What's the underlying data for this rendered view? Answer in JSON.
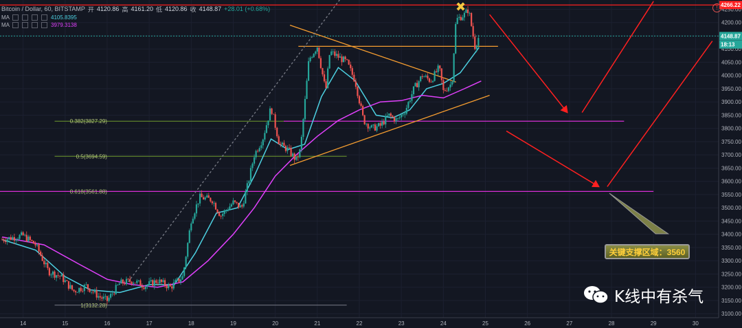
{
  "header": {
    "symbol": "Bitcoin / Dollar, 60, BITSTAMP",
    "open_label": "开",
    "open": "4120.86",
    "high_label": "高",
    "high": "4161.20",
    "low_label": "低",
    "low": "4120.86",
    "close_label": "收",
    "close": "4148.87",
    "change": "+28.01 (+0.68%)"
  },
  "indicators": [
    {
      "name": "MA",
      "value": "4105.8395",
      "color": "#4dd0e1"
    },
    {
      "name": "MA",
      "value": "3979.3138",
      "color": "#e040fb"
    }
  ],
  "price_badges": {
    "high_line": "4266.22",
    "last": "4148.87",
    "countdown": "18:13"
  },
  "fib_labels": [
    {
      "text": "0.382(3827.29)",
      "price": 3827.29
    },
    {
      "text": "0.5(3694.59)",
      "price": 3694.59
    },
    {
      "text": "0.618(3561.88)",
      "price": 3561.88
    },
    {
      "text": "1(3132.28)",
      "price": 3132.28
    }
  ],
  "callout": "关键支撑区域：3560",
  "watermark": "K线中有杀气",
  "colors": {
    "bg": "#131722",
    "up": "#26a69a",
    "down": "#ef5350",
    "ma_fast": "#4dd0e1",
    "ma_slow": "#e040fb",
    "trend": "#f59d30",
    "red": "#ff2020"
  },
  "chart_data": {
    "type": "candlestick",
    "title": "Bitcoin / Dollar, 60, BITSTAMP",
    "x_ticks": [
      "14",
      "15",
      "16",
      "17",
      "18",
      "19",
      "20",
      "21",
      "22",
      "23",
      "24",
      "25",
      "26",
      "27",
      "28",
      "29",
      "30"
    ],
    "y_ticks": [
      3100,
      3150,
      3200,
      3250,
      3300,
      3350,
      3400,
      3450,
      3500,
      3550,
      3600,
      3650,
      3700,
      3750,
      3800,
      3850,
      3900,
      3950,
      4000,
      4050,
      4100,
      4150,
      4200,
      4250
    ],
    "ylim": [
      3085,
      4285
    ],
    "xlim": [
      13.45,
      30.55
    ],
    "price_path": [
      [
        13.5,
        3380
      ],
      [
        14.0,
        3395
      ],
      [
        14.3,
        3360
      ],
      [
        14.6,
        3260
      ],
      [
        14.9,
        3240
      ],
      [
        15.2,
        3185
      ],
      [
        15.5,
        3205
      ],
      [
        15.8,
        3165
      ],
      [
        16.0,
        3150
      ],
      [
        16.3,
        3215
      ],
      [
        16.6,
        3225
      ],
      [
        16.9,
        3205
      ],
      [
        17.2,
        3225
      ],
      [
        17.5,
        3200
      ],
      [
        17.8,
        3240
      ],
      [
        18.0,
        3455
      ],
      [
        18.2,
        3540
      ],
      [
        18.5,
        3530
      ],
      [
        18.7,
        3470
      ],
      [
        19.0,
        3520
      ],
      [
        19.2,
        3500
      ],
      [
        19.35,
        3590
      ],
      [
        19.5,
        3700
      ],
      [
        19.7,
        3760
      ],
      [
        19.9,
        3880
      ],
      [
        20.1,
        3740
      ],
      [
        20.3,
        3720
      ],
      [
        20.5,
        3680
      ],
      [
        20.6,
        3720
      ],
      [
        20.8,
        4060
      ],
      [
        21.0,
        4110
      ],
      [
        21.2,
        3940
      ],
      [
        21.3,
        4090
      ],
      [
        21.5,
        4070
      ],
      [
        21.7,
        4050
      ],
      [
        21.9,
        3980
      ],
      [
        22.1,
        3830
      ],
      [
        22.3,
        3800
      ],
      [
        22.5,
        3810
      ],
      [
        22.7,
        3850
      ],
      [
        22.9,
        3830
      ],
      [
        23.1,
        3870
      ],
      [
        23.3,
        3950
      ],
      [
        23.5,
        4000
      ],
      [
        23.7,
        3980
      ],
      [
        23.9,
        4030
      ],
      [
        24.0,
        3940
      ],
      [
        24.2,
        3970
      ],
      [
        24.3,
        4210
      ],
      [
        24.5,
        4230
      ],
      [
        24.6,
        4250
      ],
      [
        24.75,
        4110
      ],
      [
        24.85,
        4148.87
      ]
    ],
    "series": [
      {
        "name": "MA",
        "value": "4105.8395"
      },
      {
        "name": "MA",
        "value": "3979.3138"
      }
    ],
    "ma_fast_path": [
      [
        13.5,
        3380
      ],
      [
        14.3,
        3340
      ],
      [
        15.0,
        3240
      ],
      [
        15.6,
        3190
      ],
      [
        16.3,
        3180
      ],
      [
        17.0,
        3210
      ],
      [
        17.6,
        3210
      ],
      [
        18.1,
        3330
      ],
      [
        18.6,
        3480
      ],
      [
        19.1,
        3500
      ],
      [
        19.5,
        3620
      ],
      [
        19.9,
        3760
      ],
      [
        20.3,
        3720
      ],
      [
        20.7,
        3740
      ],
      [
        21.1,
        3920
      ],
      [
        21.5,
        4030
      ],
      [
        21.9,
        3980
      ],
      [
        22.4,
        3850
      ],
      [
        22.8,
        3840
      ],
      [
        23.2,
        3870
      ],
      [
        23.6,
        3950
      ],
      [
        24.0,
        3970
      ],
      [
        24.4,
        4010
      ],
      [
        24.85,
        4106
      ]
    ],
    "ma_slow_path": [
      [
        13.5,
        3390
      ],
      [
        14.5,
        3360
      ],
      [
        15.3,
        3290
      ],
      [
        16.0,
        3230
      ],
      [
        16.6,
        3210
      ],
      [
        17.2,
        3200
      ],
      [
        17.8,
        3220
      ],
      [
        18.4,
        3300
      ],
      [
        19.0,
        3400
      ],
      [
        19.5,
        3500
      ],
      [
        20.0,
        3620
      ],
      [
        20.5,
        3700
      ],
      [
        21.0,
        3770
      ],
      [
        21.5,
        3830
      ],
      [
        22.0,
        3870
      ],
      [
        22.5,
        3900
      ],
      [
        23.0,
        3905
      ],
      [
        23.5,
        3925
      ],
      [
        24.0,
        3915
      ],
      [
        24.5,
        3950
      ],
      [
        24.9,
        3979
      ]
    ],
    "hlines": [
      {
        "price": 4266.22,
        "color": "#ff1f1f",
        "x0": 13.45,
        "x1": 30.55,
        "w": 1.2
      },
      {
        "price": 4148.87,
        "color": "#26a69a",
        "x0": 13.45,
        "x1": 30.55,
        "w": 1,
        "dash": "2,2"
      },
      {
        "price": 4110,
        "color": "#f59d30",
        "x0": 20.55,
        "x1": 25.3,
        "w": 1.3
      },
      {
        "price": 3827.29,
        "color": "#d62fd6",
        "x0": 20.2,
        "x1": 28.3,
        "w": 1.3
      },
      {
        "price": 3827.29,
        "color": "#6f9b2e",
        "x0": 14.75,
        "x1": 20.2,
        "w": 1
      },
      {
        "price": 3694.59,
        "color": "#6f9b2e",
        "x0": 14.75,
        "x1": 21.7,
        "w": 1
      },
      {
        "price": 3561.88,
        "color": "#d62fd6",
        "x0": 13.45,
        "x1": 29.0,
        "w": 1.3
      },
      {
        "price": 3132.28,
        "color": "#7a7d87",
        "x0": 14.75,
        "x1": 21.7,
        "w": 1
      }
    ],
    "trendlines": [
      {
        "x0": 20.35,
        "y0": 3660,
        "x1": 25.1,
        "y1": 3925,
        "color": "#f59d30"
      },
      {
        "x0": 20.35,
        "y0": 4190,
        "x1": 24.3,
        "y1": 3975,
        "color": "#f59d30"
      },
      {
        "x0": 16.5,
        "y0": 3220,
        "x1": 21.6,
        "y1": 4300,
        "color": "#7a7d87",
        "dash": "3,3"
      }
    ],
    "arrows": [
      {
        "x0": 25.1,
        "y0": 4230,
        "x1": 26.95,
        "y1": 3860
      },
      {
        "x0": 27.3,
        "y0": 3860,
        "x1": 29.0,
        "y1": 4280
      },
      {
        "x0": 25.5,
        "y0": 3790,
        "x1": 27.7,
        "y1": 3580
      },
      {
        "x0": 27.9,
        "y0": 3580,
        "x1": 30.4,
        "y1": 4130
      }
    ]
  }
}
